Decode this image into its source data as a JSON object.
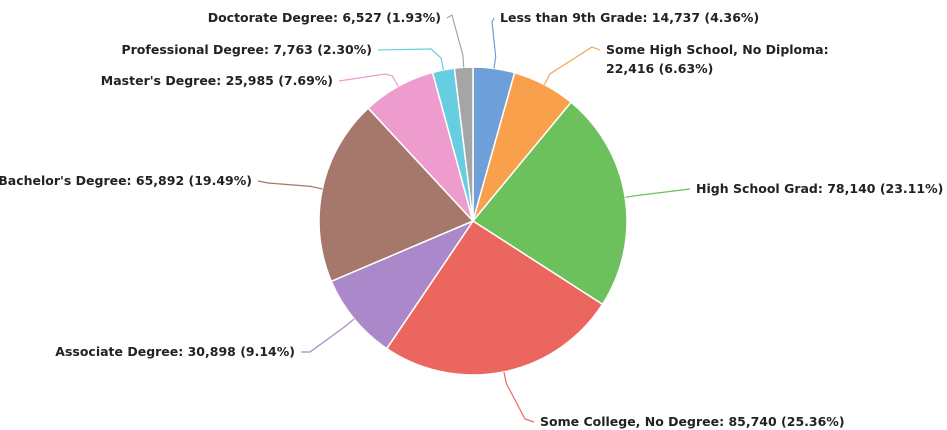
{
  "chart_data": {
    "type": "pie",
    "title": "",
    "start_angle_deg": 0,
    "direction": "clockwise",
    "slices": [
      {
        "label": "Less than 9th Grade",
        "value": 14737,
        "percent": 4.36,
        "color": "#6f9fd8",
        "text": [
          "Less than 9th Grade: 14,737 (4.36%)"
        ]
      },
      {
        "label": "Some High School, No Diploma",
        "value": 22416,
        "percent": 6.63,
        "color": "#f9a04c",
        "text": [
          "Some High School, No Diploma:",
          "22,416 (6.63%)"
        ]
      },
      {
        "label": "High School Grad",
        "value": 78140,
        "percent": 23.11,
        "color": "#6cc15c",
        "text": [
          "High School Grad: 78,140 (23.11%)"
        ]
      },
      {
        "label": "Some College, No Degree",
        "value": 85740,
        "percent": 25.36,
        "color": "#ec6660",
        "text": [
          "Some College, No Degree: 85,740 (25.36%)"
        ]
      },
      {
        "label": "Associate Degree",
        "value": 30898,
        "percent": 9.14,
        "color": "#aa88c9",
        "text": [
          "Associate Degree: 30,898 (9.14%)"
        ]
      },
      {
        "label": "Bachelor's Degree",
        "value": 65892,
        "percent": 19.49,
        "color": "#a5786b",
        "text": [
          "Bachelor's Degree: 65,892 (19.49%)"
        ]
      },
      {
        "label": "Master's Degree",
        "value": 25985,
        "percent": 7.69,
        "color": "#ed9ccd",
        "text": [
          "Master's Degree: 25,985 (7.69%)"
        ]
      },
      {
        "label": "Professional Degree",
        "value": 7763,
        "percent": 2.3,
        "color": "#67cde0",
        "text": [
          "Professional Degree: 7,763 (2.30%)"
        ]
      },
      {
        "label": "Doctorate Degree",
        "value": 6527,
        "percent": 1.93,
        "color": "#a5a5a5",
        "text": [
          "Doctorate Degree: 6,527 (1.93%)"
        ]
      }
    ]
  }
}
